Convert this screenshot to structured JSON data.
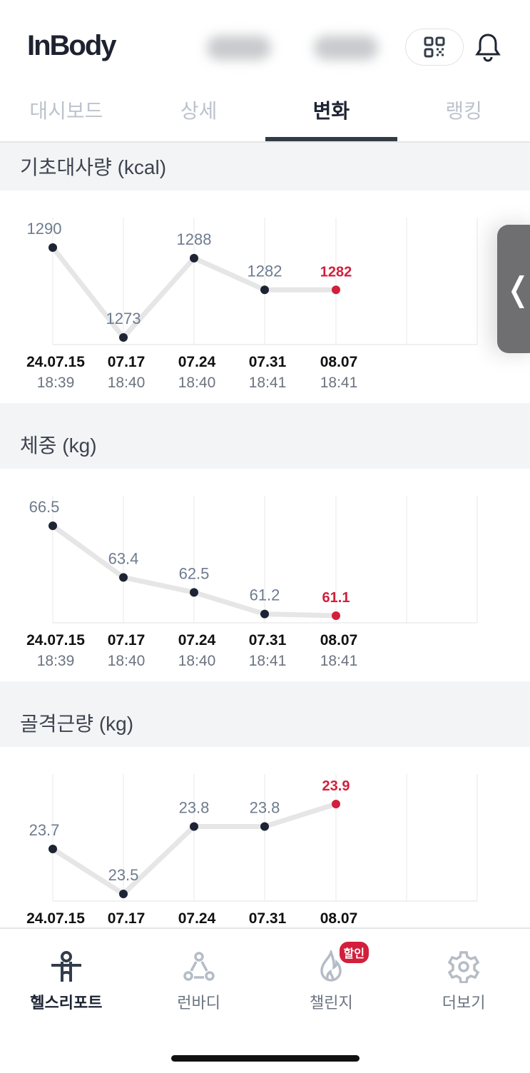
{
  "header": {
    "logo": "InBody"
  },
  "tabs": [
    {
      "label": "대시보드"
    },
    {
      "label": "상세"
    },
    {
      "label": "변화",
      "active": true
    },
    {
      "label": "랭킹"
    }
  ],
  "colors": {
    "point": "#1d2433",
    "latest": "#d21f3c",
    "line": "#e6e6e6",
    "value_label": "#6e7b8f"
  },
  "sections": [
    {
      "title": "기초대사량 (kcal)",
      "chart_data": {
        "type": "line",
        "categories": [
          "24.07.15",
          "07.17",
          "07.24",
          "07.31",
          "08.07"
        ],
        "times": [
          "18:39",
          "18:40",
          "18:40",
          "18:41",
          "18:41"
        ],
        "values": [
          1290,
          1273,
          1288,
          1282,
          1282
        ],
        "highlight_last": true
      }
    },
    {
      "title": "체중 (kg)",
      "chart_data": {
        "type": "line",
        "categories": [
          "24.07.15",
          "07.17",
          "07.24",
          "07.31",
          "08.07"
        ],
        "times": [
          "18:39",
          "18:40",
          "18:40",
          "18:41",
          "18:41"
        ],
        "values": [
          66.5,
          63.4,
          62.5,
          61.2,
          61.1
        ],
        "highlight_last": true
      }
    },
    {
      "title": "골격근량 (kg)",
      "chart_data": {
        "type": "line",
        "categories": [
          "24.07.15",
          "07.17",
          "07.24",
          "07.31",
          "08.07"
        ],
        "times": [],
        "values": [
          23.7,
          23.5,
          23.8,
          23.8,
          23.9
        ],
        "highlight_last": true
      }
    }
  ],
  "side_handle": {
    "icon": "chevron-left-icon",
    "label": "❬"
  },
  "nav": [
    {
      "label": "헬스리포트",
      "icon": "person-icon",
      "active": true
    },
    {
      "label": "런바디",
      "icon": "network-icon"
    },
    {
      "label": "챌린지",
      "icon": "flame-icon",
      "badge": "할인"
    },
    {
      "label": "더보기",
      "icon": "gear-icon"
    }
  ]
}
